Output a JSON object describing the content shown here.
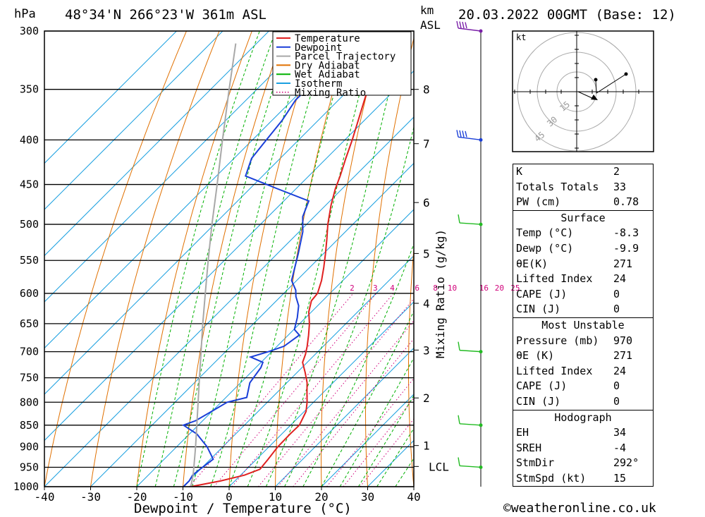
{
  "header": {
    "location": "48°34'N  266°23'W  361m  ASL",
    "datetime": "20.03.2022  00GMT  (Base: 12)",
    "hpa_unit": "hPa",
    "km_unit": "km",
    "asl_unit": "ASL"
  },
  "chart_data": {
    "type": "line",
    "subtype": "skew-T log-P diagram",
    "xlabel": "Dewpoint / Temperature (°C)",
    "ylabel": "",
    "mixing_ratio_label": "Mixing Ratio (g/kg)",
    "x_ticks": [
      "-40",
      "-30",
      "-20",
      "-10",
      "0",
      "10",
      "20",
      "30",
      "40"
    ],
    "x_range": [
      -40,
      40
    ],
    "pressure_ticks": [
      300,
      350,
      400,
      450,
      500,
      550,
      600,
      650,
      700,
      750,
      800,
      850,
      900,
      950,
      1000
    ],
    "pressure_range": [
      300,
      1000
    ],
    "km_ticks": [
      {
        "label": "8",
        "p": 350
      },
      {
        "label": "7",
        "p": 404
      },
      {
        "label": "6",
        "p": 472
      },
      {
        "label": "5",
        "p": 540
      },
      {
        "label": "4",
        "p": 616
      },
      {
        "label": "3",
        "p": 697
      },
      {
        "label": "2",
        "p": 791
      },
      {
        "label": "1",
        "p": 897
      }
    ],
    "lcl": {
      "label": "LCL",
      "p": 948
    },
    "mixing_ratio_values": [
      "2",
      "3",
      "4",
      "6",
      "8",
      "10",
      "16",
      "20",
      "25"
    ],
    "legend": [
      {
        "name": "Temperature",
        "color": "#e02020",
        "style": "solid"
      },
      {
        "name": "Dewpoint",
        "color": "#1a3fd8",
        "style": "solid"
      },
      {
        "name": "Parcel Trajectory",
        "color": "#a8a8a8",
        "style": "solid"
      },
      {
        "name": "Dry Adiabat",
        "color": "#e07000",
        "style": "solid"
      },
      {
        "name": "Wet Adiabat",
        "color": "#00b000",
        "style": "solid"
      },
      {
        "name": "Isotherm",
        "color": "#1ba0e0",
        "style": "solid"
      },
      {
        "name": "Mixing Ratio",
        "color": "#d0007a",
        "style": "dotted"
      }
    ],
    "legend_placement": "top-right",
    "series": [
      {
        "name": "Temperature",
        "points": [
          [
            1000,
            -8.3
          ],
          [
            985,
            -3.1
          ],
          [
            970,
            0.8
          ],
          [
            955,
            2.9
          ],
          [
            930,
            2.5
          ],
          [
            900,
            1.9
          ],
          [
            870,
            1.8
          ],
          [
            850,
            1.9
          ],
          [
            820,
            0.4
          ],
          [
            800,
            -1.4
          ],
          [
            780,
            -3.5
          ],
          [
            760,
            -5.6
          ],
          [
            740,
            -8.2
          ],
          [
            720,
            -11.0
          ],
          [
            705,
            -12.1
          ],
          [
            690,
            -13.5
          ],
          [
            670,
            -15.6
          ],
          [
            650,
            -17.9
          ],
          [
            630,
            -20.6
          ],
          [
            612,
            -22.4
          ],
          [
            600,
            -22.7
          ],
          [
            580,
            -24.6
          ],
          [
            560,
            -27.0
          ],
          [
            540,
            -29.6
          ],
          [
            520,
            -32.4
          ],
          [
            500,
            -35.4
          ],
          [
            475,
            -38.9
          ],
          [
            455,
            -41.5
          ],
          [
            440,
            -43.2
          ],
          [
            420,
            -45.8
          ],
          [
            400,
            -48.4
          ],
          [
            380,
            -51.3
          ],
          [
            360,
            -54.4
          ],
          [
            340,
            -57.5
          ],
          [
            320,
            -60.8
          ],
          [
            300,
            -64.3
          ]
        ]
      },
      {
        "name": "Dewpoint",
        "points": [
          [
            1000,
            -9.9
          ],
          [
            985,
            -9.9
          ],
          [
            970,
            -10.4
          ],
          [
            955,
            -10.1
          ],
          [
            930,
            -9.4
          ],
          [
            900,
            -13.4
          ],
          [
            870,
            -18.4
          ],
          [
            850,
            -23.2
          ],
          [
            840,
            -21.5
          ],
          [
            820,
            -20.1
          ],
          [
            800,
            -18.7
          ],
          [
            790,
            -15.5
          ],
          [
            760,
            -18.0
          ],
          [
            730,
            -18.9
          ],
          [
            720,
            -19.6
          ],
          [
            710,
            -23.4
          ],
          [
            700,
            -20.7
          ],
          [
            690,
            -18.5
          ],
          [
            670,
            -17.6
          ],
          [
            660,
            -19.9
          ],
          [
            640,
            -21.8
          ],
          [
            620,
            -24.1
          ],
          [
            605,
            -26.7
          ],
          [
            595,
            -28.1
          ],
          [
            580,
            -31.1
          ],
          [
            540,
            -35.5
          ],
          [
            510,
            -39.2
          ],
          [
            490,
            -42.5
          ],
          [
            470,
            -44.6
          ],
          [
            455,
            -54.1
          ],
          [
            440,
            -63.7
          ],
          [
            420,
            -66.2
          ],
          [
            400,
            -67.0
          ],
          [
            380,
            -67.8
          ],
          [
            360,
            -69.3
          ],
          [
            335,
            -69.2
          ],
          [
            320,
            -67.5
          ],
          [
            305,
            -70.5
          ],
          [
            300,
            -72.3
          ]
        ]
      },
      {
        "name": "Parcel Trajectory",
        "points": [
          [
            1000,
            -8.3
          ],
          [
            970,
            -10.3
          ],
          [
            948,
            -12.0
          ],
          [
            900,
            -15.9
          ],
          [
            850,
            -20.3
          ],
          [
            800,
            -25.0
          ],
          [
            750,
            -30.0
          ],
          [
            700,
            -35.3
          ],
          [
            650,
            -41.0
          ],
          [
            600,
            -47.0
          ],
          [
            550,
            -53.5
          ],
          [
            500,
            -60.5
          ],
          [
            450,
            -68.0
          ],
          [
            400,
            -76.5
          ],
          [
            350,
            -86.0
          ],
          [
            310,
            -94.5
          ]
        ]
      }
    ]
  },
  "hodograph": {
    "unit_label": "kt",
    "ring_labels": [
      "15",
      "30",
      "45"
    ]
  },
  "wind_barbs": [
    {
      "p": 300,
      "barb": "pennant"
    },
    {
      "p": 400,
      "barb": "pennant"
    },
    {
      "p": 500,
      "barb": "flag"
    },
    {
      "p": 700,
      "barb": "flag"
    },
    {
      "p": 850,
      "barb": "flag"
    },
    {
      "p": 950,
      "barb": "flag"
    }
  ],
  "indices": {
    "basic": [
      {
        "label": "K",
        "value": "2"
      },
      {
        "label": "Totals Totals",
        "value": "33"
      },
      {
        "label": "PW (cm)",
        "value": "0.78"
      }
    ],
    "surface": {
      "title": "Surface",
      "rows": [
        {
          "label": "Temp (°C)",
          "value": "-8.3"
        },
        {
          "label": "Dewp (°C)",
          "value": "-9.9"
        },
        {
          "label": "θE(K)",
          "value": "271"
        },
        {
          "label": "Lifted Index",
          "value": "24"
        },
        {
          "label": "CAPE (J)",
          "value": "0"
        },
        {
          "label": "CIN (J)",
          "value": "0"
        }
      ]
    },
    "most_unstable": {
      "title": "Most Unstable",
      "rows": [
        {
          "label": "Pressure (mb)",
          "value": "970"
        },
        {
          "label": "θE (K)",
          "value": "271"
        },
        {
          "label": "Lifted Index",
          "value": "24"
        },
        {
          "label": "CAPE (J)",
          "value": "0"
        },
        {
          "label": "CIN (J)",
          "value": "0"
        }
      ]
    },
    "hodograph": {
      "title": "Hodograph",
      "rows": [
        {
          "label": "EH",
          "value": "34"
        },
        {
          "label": "SREH",
          "value": "-4"
        },
        {
          "label": "StmDir",
          "value": "292°"
        },
        {
          "label": "StmSpd (kt)",
          "value": "15"
        }
      ]
    }
  },
  "footer": "©weatheronline.co.uk"
}
